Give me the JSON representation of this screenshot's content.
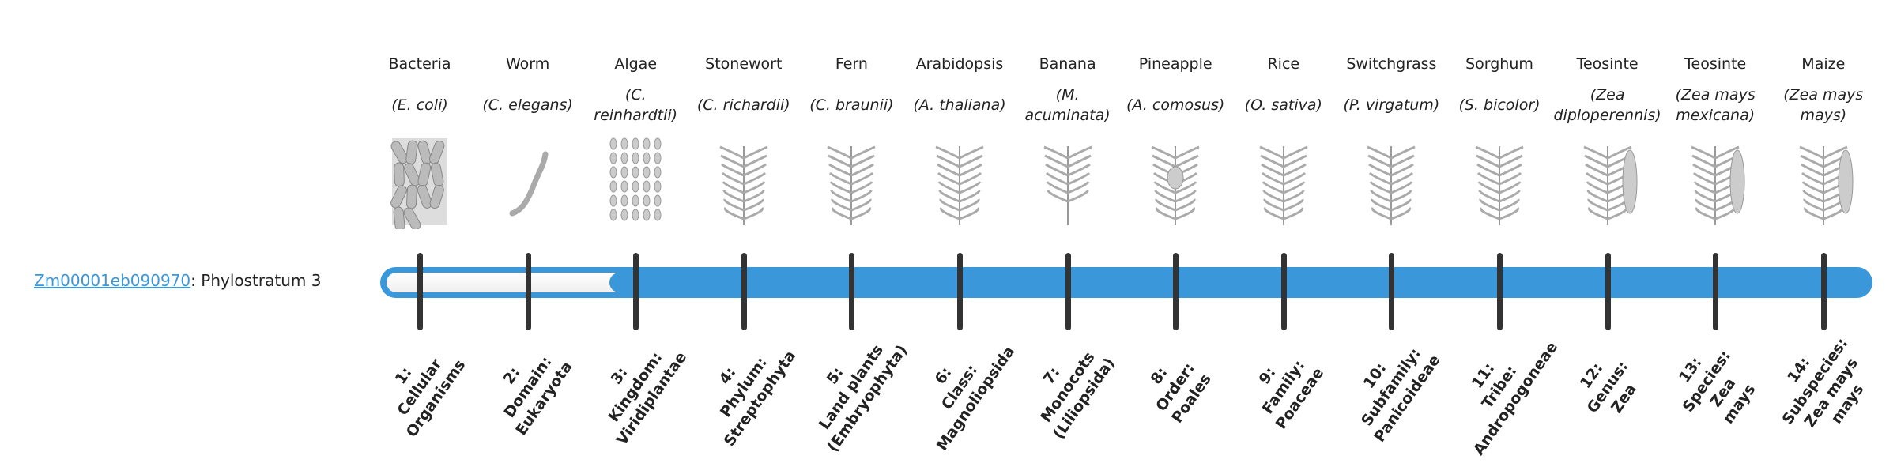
{
  "gene": {
    "id": "Zm00001eb090970",
    "suffix": ": Phylostratum 3"
  },
  "phylostratum_value": 3,
  "colors": {
    "bar": "#3a97da",
    "tick": "#333333",
    "link": "#3a97da"
  },
  "organisms": [
    {
      "common": "Bacteria",
      "scientific": "(E. coli)",
      "icon": "bacteria-image"
    },
    {
      "common": "Worm",
      "scientific": "(C. elegans)",
      "icon": "worm-image"
    },
    {
      "common": "Algae",
      "scientific": "(C. reinhardtii)",
      "icon": "algae-image"
    },
    {
      "common": "Stonewort",
      "scientific": "(C. richardii)",
      "icon": "stonewort-image"
    },
    {
      "common": "Fern",
      "scientific": "(C. braunii)",
      "icon": "fern-image"
    },
    {
      "common": "Arabidopsis",
      "scientific": "(A. thaliana)",
      "icon": "arabidopsis-image"
    },
    {
      "common": "Banana",
      "scientific": "(M. acuminata)",
      "icon": "banana-image"
    },
    {
      "common": "Pineapple",
      "scientific": "(A. comosus)",
      "icon": "pineapple-image"
    },
    {
      "common": "Rice",
      "scientific": "(O. sativa)",
      "icon": "rice-image"
    },
    {
      "common": "Switchgrass",
      "scientific": "(P. virgatum)",
      "icon": "switchgrass-image"
    },
    {
      "common": "Sorghum",
      "scientific": "(S. bicolor)",
      "icon": "sorghum-image"
    },
    {
      "common": "Teosinte",
      "scientific": "(Zea diploperennis)",
      "icon": "teosinte-image"
    },
    {
      "common": "Teosinte",
      "scientific": "(Zea mays mexicana)",
      "icon": "teosinte-mexicana-image"
    },
    {
      "common": "Maize",
      "scientific": "(Zea mays mays)",
      "icon": "maize-image"
    }
  ],
  "strata": [
    {
      "lines": [
        "1:",
        "Cellular",
        "Organisms"
      ]
    },
    {
      "lines": [
        "2:",
        "Domain:",
        "Eukaryota"
      ]
    },
    {
      "lines": [
        "3:",
        "Kingdom:",
        "Viridiplantae"
      ]
    },
    {
      "lines": [
        "4:",
        "Phylum:",
        "Streptophyta"
      ]
    },
    {
      "lines": [
        "5:",
        "Land plants",
        "(Embryophyta)"
      ]
    },
    {
      "lines": [
        "6:",
        "Class:",
        "Magnoliopsida"
      ]
    },
    {
      "lines": [
        "7:",
        "Monocots",
        "(Liliopsida)"
      ]
    },
    {
      "lines": [
        "8:",
        "Order:",
        "Poales"
      ]
    },
    {
      "lines": [
        "9:",
        "Family:",
        "Poaceae"
      ]
    },
    {
      "lines": [
        "10:",
        "Subfamily:",
        "Panicoideae"
      ]
    },
    {
      "lines": [
        "11:",
        "Tribe:",
        "Andropogoneae"
      ]
    },
    {
      "lines": [
        "12:",
        "Genus:",
        "Zea"
      ]
    },
    {
      "lines": [
        "13:",
        "Species:",
        "Zea",
        "mays"
      ]
    },
    {
      "lines": [
        "14:",
        "Subspecies:",
        "Zea mays",
        "mays"
      ]
    }
  ]
}
